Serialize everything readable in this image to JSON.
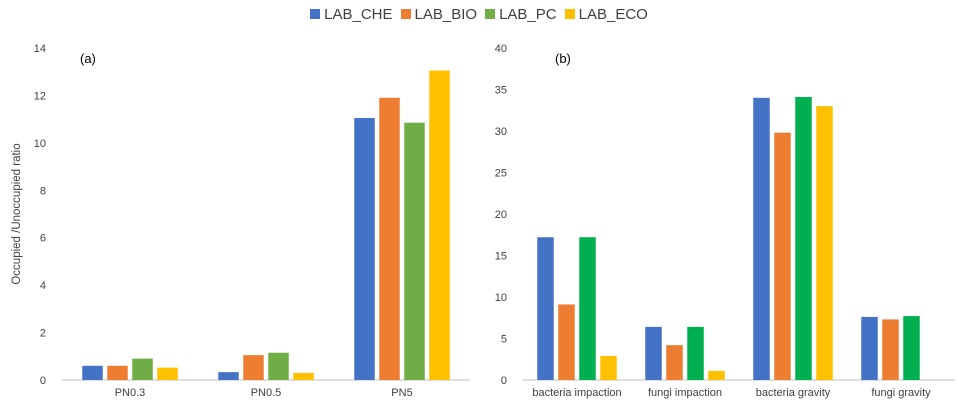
{
  "legend": [
    {
      "label": "LAB_CHE",
      "color": "#4472C4"
    },
    {
      "label": "LAB_BIO",
      "color": "#ED7D31"
    },
    {
      "label": "LAB_PC",
      "color": "#70AD47"
    },
    {
      "label": "LAB_ECO",
      "color": "#FFC000"
    }
  ],
  "chart_data": [
    {
      "type": "bar",
      "panel_label": "(a)",
      "ylabel": "Occupied /Unoccupied  ratio",
      "ylim": [
        0,
        14
      ],
      "yticks": [
        0,
        2,
        4,
        6,
        8,
        10,
        12,
        14
      ],
      "categories": [
        "PN0.3",
        "PN0.5",
        "PN5"
      ],
      "series": [
        {
          "name": "LAB_CHE",
          "color": "#4472C4",
          "values": [
            0.6,
            0.33,
            11.05
          ]
        },
        {
          "name": "LAB_BIO",
          "color": "#ED7D31",
          "values": [
            0.6,
            1.05,
            11.9
          ]
        },
        {
          "name": "LAB_PC",
          "color": "#70AD47",
          "values": [
            0.9,
            1.15,
            10.85
          ]
        },
        {
          "name": "LAB_ECO",
          "color": "#FFC000",
          "values": [
            0.52,
            0.3,
            13.05
          ]
        }
      ]
    },
    {
      "type": "bar",
      "panel_label": "(b)",
      "ylabel": "",
      "ylim": [
        0,
        40
      ],
      "yticks": [
        0,
        5,
        10,
        15,
        20,
        25,
        30,
        35,
        40
      ],
      "categories": [
        "bacteria impaction",
        "fungi impaction",
        "bacteria gravity",
        "fungi gravity"
      ],
      "series": [
        {
          "name": "LAB_CHE",
          "color": "#4472C4",
          "values": [
            17.2,
            6.4,
            34.0,
            7.6
          ]
        },
        {
          "name": "LAB_BIO",
          "color": "#ED7D31",
          "values": [
            9.1,
            4.2,
            29.8,
            7.3
          ]
        },
        {
          "name": "LAB_PC",
          "color": "#00B050",
          "values": [
            17.2,
            6.4,
            34.1,
            7.7
          ]
        },
        {
          "name": "LAB_ECO",
          "color": "#FFC000",
          "values": [
            2.9,
            1.1,
            33.0,
            null
          ]
        }
      ]
    }
  ]
}
